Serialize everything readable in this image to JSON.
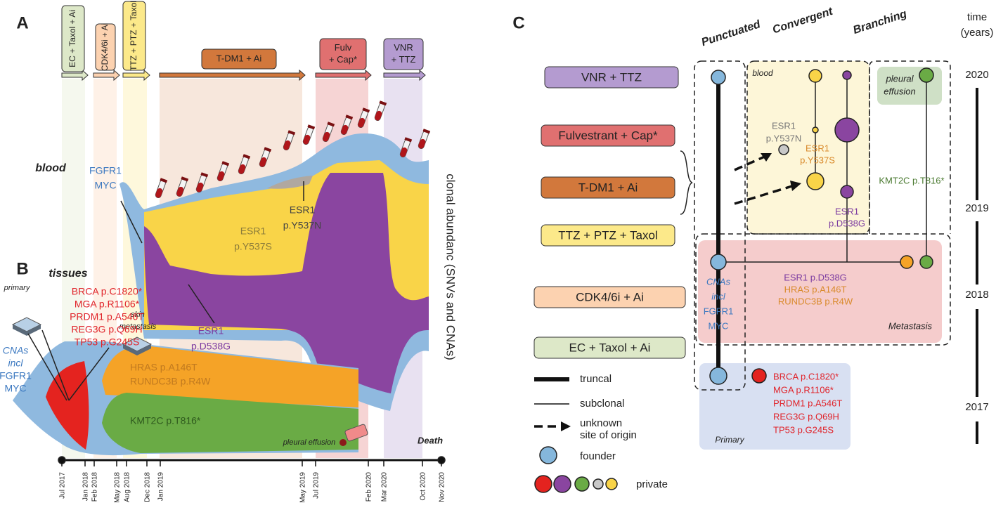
{
  "panel_a": {
    "letter": "A",
    "treatments": [
      [
        "EC + Taxol + Ai"
      ],
      [
        "CDK4/6i + Ai"
      ],
      [
        "TTZ + PTZ + Taxol"
      ],
      [
        "T-DM1 + Ai"
      ],
      [
        "Fulv",
        "+ Cap*"
      ],
      [
        "VNR",
        "+ TTZ"
      ]
    ],
    "compartment": "blood",
    "founder_label": [
      "FGFR1",
      "MYC"
    ],
    "clones": [
      [
        "ESR1",
        "p.Y537S"
      ],
      [
        "ESR1",
        "p.Y537N"
      ],
      [
        "ESR1",
        "p.D538G"
      ]
    ],
    "y_axis_label": "clonal abundanc (SNVs and CNAs)"
  },
  "panel_b": {
    "letter": "B",
    "compartment": "tissues",
    "primary": "primary",
    "skin_metastasis": [
      "skin",
      "metastasis"
    ],
    "primary_mutations": [
      "BRCA p.C1820*",
      "MGA p.R1106*",
      "PRDM1 p.A546T",
      "REG3G p.Q69H",
      "TP53 p.G245S"
    ],
    "founder_label": [
      "CNAs",
      "incl",
      "FGFR1",
      "MYC"
    ],
    "metastasis_mutations": [
      "HRAS p.A146T",
      "RUNDC3B p.R4W"
    ],
    "shared_mutation": "KMT2C p.T816*",
    "pleural_effusion": "pleural effusion",
    "death": "Death",
    "timeline": [
      "Jul 2017",
      "Jan 2018",
      "Feb 2018",
      "May 2018",
      "Aug 2018",
      "Dec 2018",
      "Jan 2019",
      "May 2019",
      "Jul 2019",
      "Feb 2020",
      "Mar 2020",
      "Oct 2020",
      "Nov 2020"
    ]
  },
  "panel_c": {
    "letter": "C",
    "patterns": [
      "Punctuated",
      "Convergent",
      "Branching"
    ],
    "time_label": [
      "time",
      "(years)"
    ],
    "years": [
      "2020",
      "2019",
      "2018",
      "2017"
    ],
    "treatments": [
      "VNR + TTZ",
      "Fulvestrant + Cap*",
      "T-DM1 + Ai",
      "TTZ + PTZ + Taxol",
      "CDK4/6i + Ai",
      "EC + Taxol + Ai"
    ],
    "blood": "blood",
    "pleural_effusion": [
      "pleural",
      "effusion"
    ],
    "blood_clones": [
      [
        "ESR1",
        "p.Y537N"
      ],
      [
        "ESR1",
        "p.Y537S"
      ],
      [
        "ESR1",
        "p.D538G"
      ]
    ],
    "effusion_clone": "KMT2C p.T816*",
    "metastasis_mutations": [
      "ESR1 p.D538G",
      "HRAS p.A146T",
      "RUNDC3B p.R4W"
    ],
    "metastasis": "Metastasis",
    "founder_label": [
      "CNAs",
      "incl",
      "FGFR1",
      "MYC"
    ],
    "primary": "Primary",
    "primary_mutations": [
      "BRCA p.C1820*",
      "MGA p.R1106*",
      "PRDM1 p.A546T",
      "REG3G p.Q69H",
      "TP53 p.G245S"
    ],
    "legend": {
      "truncal": "truncal",
      "subclonal": "subclonal",
      "unknown": [
        "unknown",
        "site of origin"
      ],
      "founder": "founder",
      "private": "private"
    }
  }
}
